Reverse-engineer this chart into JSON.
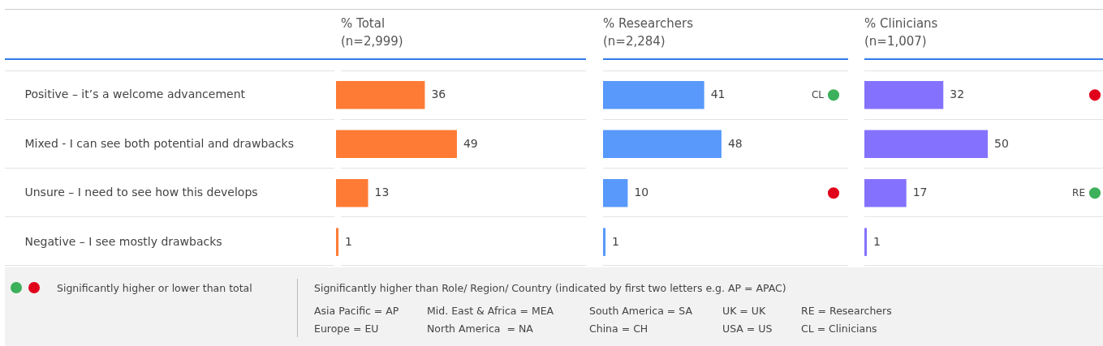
{
  "chart_data": [
    {
      "type": "bar",
      "orientation": "horizontal",
      "categories": [
        "Positive – it’s a welcome advancement",
        "Mixed - I can see both potential and drawbacks",
        "Unsure – I need to see how this develops",
        "Negative – I see mostly drawbacks"
      ],
      "values": [
        36,
        49,
        13,
        1
      ],
      "color": "#fe7b35",
      "data_labels": true,
      "tick_labels": "y",
      "title": "% Total",
      "subtitle": "(n=2,999)",
      "annotations": [
        "Significantly higher or lower than total",
        "Significantly higher than Role/ Region/ Country (indicated by first two letters e.g. AP = APAC)",
        "Asia Pacific = AP",
        "Europe = EU",
        "Mid. East & Africa = MEA",
        "North America  = NA",
        "South America = SA",
        "China = CH",
        "UK = UK",
        "USA = US",
        "RE = Researchers",
        "CL = Clinicians"
      ]
    },
    {
      "type": "bar",
      "orientation": "horizontal",
      "categories": [
        null,
        null,
        null,
        null
      ],
      "values": [
        41,
        48,
        10,
        1
      ],
      "color": "#5899fb",
      "data_labels": true,
      "tick_labels": false,
      "title": "% Researchers",
      "subtitle": "(n=2,284)",
      "annotations": [
        "CL"
      ]
    },
    {
      "type": "bar",
      "orientation": "horizontal",
      "categories": [
        null,
        null,
        null,
        null
      ],
      "values": [
        32,
        50,
        17,
        1
      ],
      "color": "#8472fe",
      "data_labels": true,
      "tick_labels": false,
      "title": "% Clinicians",
      "subtitle": "(n=1,007)",
      "annotations": [
        "RE"
      ]
    }
  ]
}
